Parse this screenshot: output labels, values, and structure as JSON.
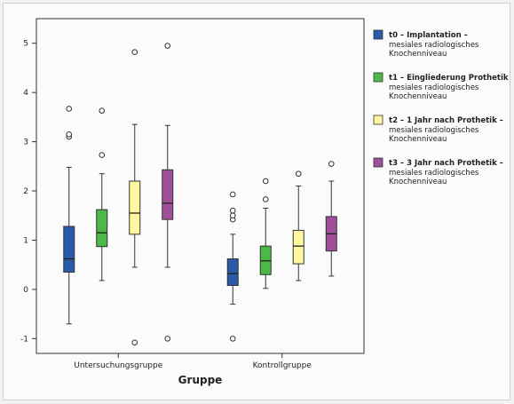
{
  "chart_data": {
    "type": "boxplot",
    "xlabel": "Gruppe",
    "ylabel": "",
    "ylim": [
      -1.3,
      5.5
    ],
    "yticks": [
      -1,
      0,
      1,
      2,
      3,
      4,
      5
    ],
    "grid": false,
    "legend_position": "right",
    "categories": [
      "Untersuchungsgruppe",
      "Kontrollgruppe"
    ],
    "series": [
      {
        "name": "t0 – Implantation –",
        "subtitle": [
          "mesiales radiologisches",
          "Knochenniveau"
        ],
        "color": "#2a5aa8",
        "boxes": [
          {
            "whisker_low": -0.7,
            "q1": 0.35,
            "median": 0.62,
            "q3": 1.28,
            "whisker_high": 2.48,
            "outliers": [
              3.1,
              3.15,
              3.67
            ]
          },
          {
            "whisker_low": -0.3,
            "q1": 0.08,
            "median": 0.32,
            "q3": 0.62,
            "whisker_high": 1.12,
            "outliers": [
              -1.0,
              1.42,
              1.5,
              1.6,
              1.93
            ]
          }
        ]
      },
      {
        "name": "t1 – Eingliederung Prothetik –",
        "subtitle": [
          "mesiales radiologisches",
          "Knochenniveau"
        ],
        "color": "#4cb848",
        "boxes": [
          {
            "whisker_low": 0.18,
            "q1": 0.87,
            "median": 1.15,
            "q3": 1.62,
            "whisker_high": 2.35,
            "outliers": [
              2.73,
              3.63
            ]
          },
          {
            "whisker_low": 0.02,
            "q1": 0.3,
            "median": 0.58,
            "q3": 0.88,
            "whisker_high": 1.65,
            "outliers": [
              1.83,
              2.2
            ]
          }
        ]
      },
      {
        "name": "t2 – 1 Jahr nach Prothetik –",
        "subtitle": [
          "mesiales radiologisches",
          "Knochenniveau"
        ],
        "color": "#fff7a0",
        "boxes": [
          {
            "whisker_low": 0.45,
            "q1": 1.12,
            "median": 1.55,
            "q3": 2.2,
            "whisker_high": 3.35,
            "outliers": [
              -1.08,
              4.82
            ]
          },
          {
            "whisker_low": 0.18,
            "q1": 0.52,
            "median": 0.88,
            "q3": 1.2,
            "whisker_high": 2.1,
            "outliers": [
              2.35
            ]
          }
        ]
      },
      {
        "name": "t3 – 3 Jahr nach Prothetik –",
        "subtitle": [
          "mesiales radiologisches",
          "Knochenniveau"
        ],
        "color": "#a0509a",
        "boxes": [
          {
            "whisker_low": 0.45,
            "q1": 1.42,
            "median": 1.75,
            "q3": 2.43,
            "whisker_high": 3.33,
            "outliers": [
              -1.0,
              4.95
            ]
          },
          {
            "whisker_low": 0.27,
            "q1": 0.78,
            "median": 1.13,
            "q3": 1.48,
            "whisker_high": 2.2,
            "outliers": [
              2.55
            ]
          }
        ]
      }
    ]
  }
}
